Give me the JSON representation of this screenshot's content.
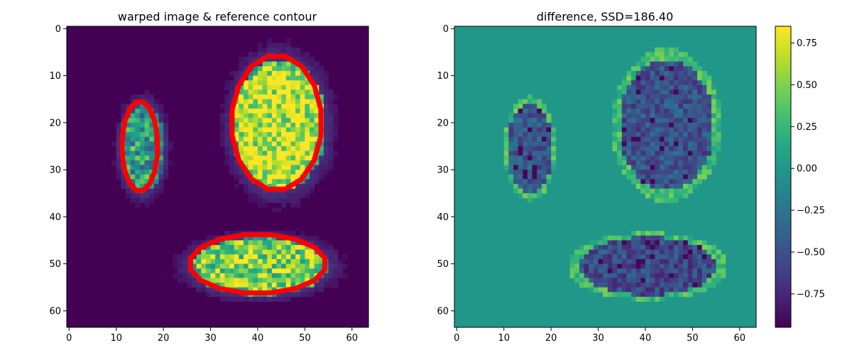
{
  "chart_data": [
    {
      "type": "heatmap",
      "title": "warped image & reference contour",
      "xlabel": "",
      "ylabel": "",
      "xlim": [
        -0.5,
        63.5
      ],
      "ylim": [
        63.5,
        -0.5
      ],
      "x_ticks": [
        "0",
        "10",
        "20",
        "30",
        "40",
        "50",
        "60"
      ],
      "y_ticks": [
        "0",
        "10",
        "20",
        "30",
        "40",
        "50",
        "60"
      ],
      "colormap": "viridis",
      "background_color": "#440154",
      "contour_color": "#ff0000",
      "ellipses": [
        {
          "cx": 15,
          "cy": 25,
          "rx": 4.8,
          "ry": 9.5,
          "mean_value": 0.55
        },
        {
          "cx": 44,
          "cy": 20,
          "rx": 10,
          "ry": 14,
          "mean_value": 0.93
        },
        {
          "cx": 40,
          "cy": 50,
          "rx": 14.5,
          "ry": 6.2,
          "mean_value": 0.8
        }
      ],
      "contours": [
        {
          "cx": 15,
          "cy": 25,
          "rx": 3.8,
          "ry": 9.6
        },
        {
          "cx": 44,
          "cy": 20,
          "rx": 9.6,
          "ry": 14.4
        },
        {
          "cx": 40,
          "cy": 50,
          "rx": 14.5,
          "ry": 6.3
        }
      ]
    },
    {
      "type": "heatmap",
      "title": "difference, SSD=186.40",
      "xlabel": "",
      "ylabel": "",
      "xlim": [
        -0.5,
        63.5
      ],
      "ylim": [
        63.5,
        -0.5
      ],
      "x_ticks": [
        "0",
        "10",
        "20",
        "30",
        "40",
        "50",
        "60"
      ],
      "y_ticks": [
        "0",
        "10",
        "20",
        "30",
        "40",
        "50",
        "60"
      ],
      "colormap": "viridis",
      "background_value": 0.0,
      "colorbar": {
        "min": -0.95,
        "max": 0.85,
        "ticks": [
          0.75,
          0.5,
          0.25,
          0.0,
          -0.25,
          -0.5,
          -0.75
        ],
        "tick_labels": [
          "0.75",
          "0.50",
          "0.25",
          "0.00",
          "−0.25",
          "−0.50",
          "−0.75"
        ]
      },
      "ellipses": [
        {
          "cx": 15,
          "cy": 25,
          "rx": 4.8,
          "ry": 9.5,
          "mean_value": -0.45
        },
        {
          "cx": 44,
          "cy": 20,
          "rx": 10,
          "ry": 14,
          "mean_value": -0.5
        },
        {
          "cx": 40,
          "cy": 50,
          "rx": 14.5,
          "ry": 6.2,
          "mean_value": -0.55
        }
      ]
    }
  ]
}
